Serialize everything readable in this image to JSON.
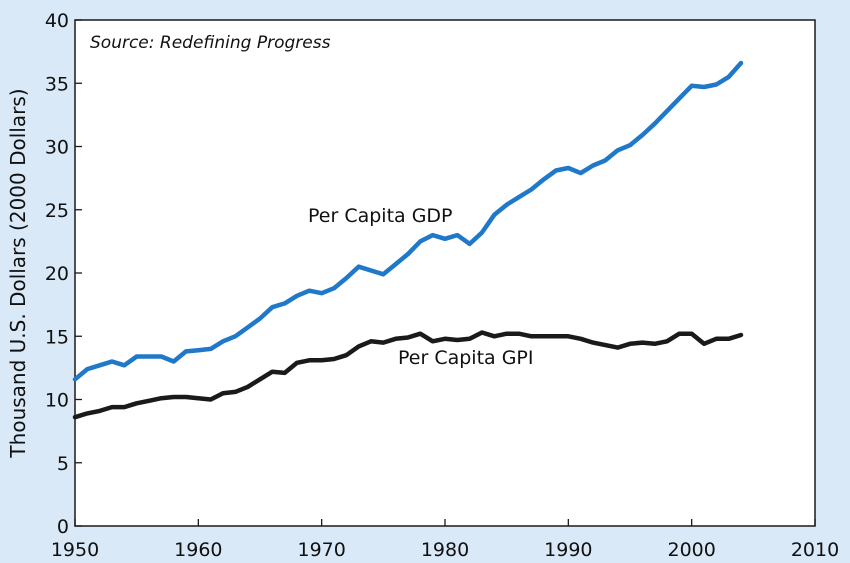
{
  "chart_data": {
    "type": "line",
    "source_note": "Source: Redefining Progress",
    "xlabel": "",
    "ylabel": "Thousand U.S. Dollars (2000 Dollars)",
    "xlim": [
      1950,
      2010
    ],
    "ylim": [
      0,
      40
    ],
    "x_ticks": [
      1950,
      1960,
      1970,
      1980,
      1990,
      2000,
      2010
    ],
    "y_ticks": [
      0,
      5,
      10,
      15,
      20,
      25,
      30,
      35,
      40
    ],
    "grid": false,
    "legend": "none (series labeled directly on plot)",
    "x": [
      1950,
      1951,
      1952,
      1953,
      1954,
      1955,
      1956,
      1957,
      1958,
      1959,
      1960,
      1961,
      1962,
      1963,
      1964,
      1965,
      1966,
      1967,
      1968,
      1969,
      1970,
      1971,
      1972,
      1973,
      1974,
      1975,
      1976,
      1977,
      1978,
      1979,
      1980,
      1981,
      1982,
      1983,
      1984,
      1985,
      1986,
      1987,
      1988,
      1989,
      1990,
      1991,
      1992,
      1993,
      1994,
      1995,
      1996,
      1997,
      1998,
      1999,
      2000,
      2001,
      2002,
      2003,
      2004
    ],
    "series": [
      {
        "name": "Per Capita GDP",
        "color": "#1f78c8",
        "values": [
          11.6,
          12.4,
          12.7,
          13.0,
          12.7,
          13.4,
          13.4,
          13.4,
          13.0,
          13.8,
          13.9,
          14.0,
          14.6,
          15.0,
          15.7,
          16.4,
          17.3,
          17.6,
          18.2,
          18.6,
          18.4,
          18.8,
          19.6,
          20.5,
          20.2,
          19.9,
          20.7,
          21.5,
          22.5,
          23.0,
          22.7,
          23.0,
          22.3,
          23.2,
          24.6,
          25.4,
          26.0,
          26.6,
          27.4,
          28.1,
          28.3,
          27.9,
          28.5,
          28.9,
          29.7,
          30.1,
          30.9,
          31.8,
          32.8,
          33.8,
          34.8,
          34.7,
          34.9,
          35.5,
          36.6
        ]
      },
      {
        "name": "Per Capita GPI",
        "color": "#1a1a1a",
        "values": [
          8.6,
          8.9,
          9.1,
          9.4,
          9.4,
          9.7,
          9.9,
          10.1,
          10.2,
          10.2,
          10.1,
          10.0,
          10.5,
          10.6,
          11.0,
          11.6,
          12.2,
          12.1,
          12.9,
          13.1,
          13.1,
          13.2,
          13.5,
          14.2,
          14.6,
          14.5,
          14.8,
          14.9,
          15.2,
          14.6,
          14.8,
          14.7,
          14.8,
          15.3,
          15.0,
          15.2,
          15.2,
          15.0,
          15.0,
          15.0,
          15.0,
          14.8,
          14.5,
          14.3,
          14.1,
          14.4,
          14.5,
          14.4,
          14.6,
          15.2,
          15.2,
          14.4,
          14.8,
          14.8,
          15.1
        ]
      }
    ]
  }
}
